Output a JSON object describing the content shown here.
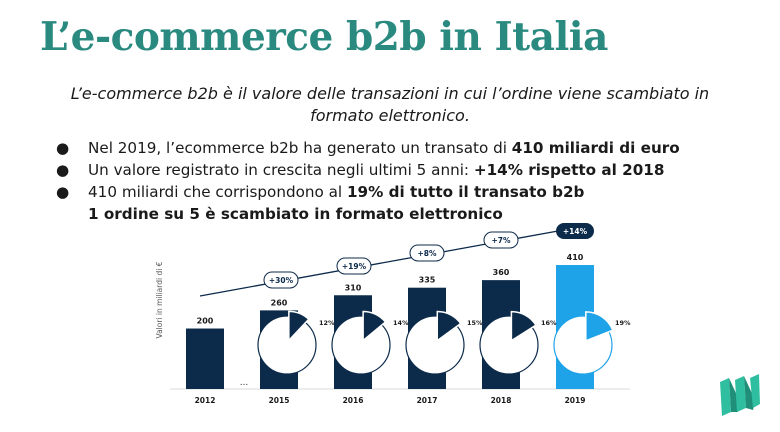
{
  "header": {
    "title": "L’e-commerce b2b in Italia",
    "subtitle": "L’e-commerce b2b è il valore delle transazioni in cui l’ordine viene scambiato in formato elettronico."
  },
  "bullets": [
    {
      "text": "Nel 2019, l’ecommerce b2b ha generato un transato di ",
      "bold": "410 miliardi di euro"
    },
    {
      "text": "Un valore registrato in crescita negli ultimi 5 anni: ",
      "bold": "+14% rispetto al 2018"
    },
    {
      "text": "410 miliardi che corrispondono al ",
      "bold": "19% di tutto il transato b2b",
      "line2": "1 ordine su 5 è scambiato in formato elettronico"
    }
  ],
  "bullet_glyph": "●",
  "chart_data": {
    "type": "bar",
    "ylabel": "Valori in miliardi di €",
    "categories": [
      "2012",
      "2015",
      "2016",
      "2017",
      "2018",
      "2019"
    ],
    "values": [
      200,
      260,
      310,
      335,
      360,
      410
    ],
    "value_labels": [
      "200",
      "260",
      "310",
      "335",
      "360",
      "410"
    ],
    "gap_marker": "...",
    "growth_labels": [
      "+30%",
      "+19%",
      "+8%",
      "+7%",
      "+14%"
    ],
    "pie_share_labels": [
      "12%",
      "14%",
      "15%",
      "16%",
      "19%"
    ],
    "pie_shares": [
      12,
      14,
      15,
      16,
      19
    ],
    "colors": {
      "bar": "#0c2a4a",
      "highlight": "#1fa3e8",
      "trend": "#0c2a4a",
      "title": "#2a8a80"
    }
  }
}
